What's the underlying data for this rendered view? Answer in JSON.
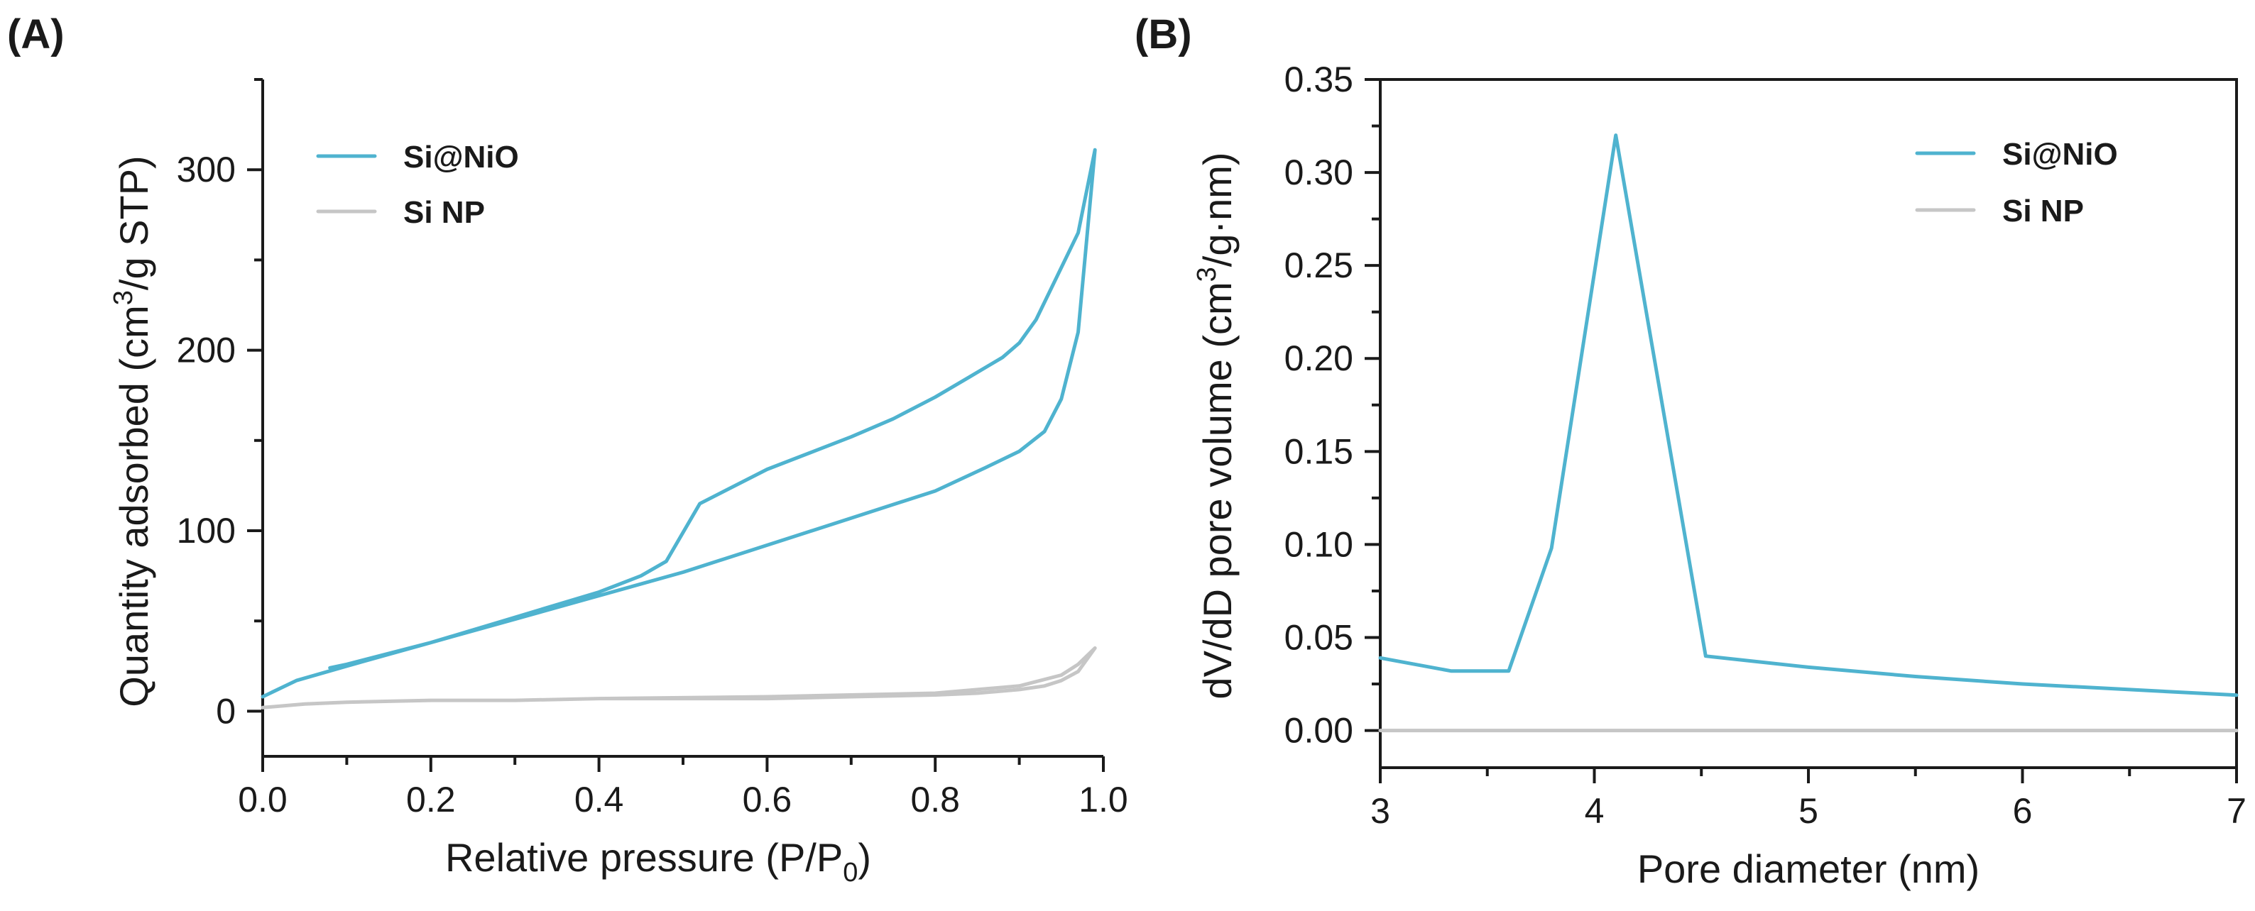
{
  "colors": {
    "si_nio": "#4fb3cf",
    "si_np": "#c6c6c6",
    "axis": "#1a1a1a"
  },
  "chart_data": [
    {
      "panel_label": "(A)",
      "type": "line",
      "xlabel": "Relative pressure (P/P",
      "xlabel_sub": "0",
      "xlabel_end": ")",
      "ylabel": "Quantity adsorbed (cm",
      "ylabel_sup": "3",
      "ylabel_end": "/g STP)",
      "xlim": [
        0.0,
        1.0
      ],
      "ylim": [
        -25,
        350
      ],
      "xticks": [
        0.0,
        0.2,
        0.4,
        0.6,
        0.8,
        1.0
      ],
      "xtick_labels": [
        "0.0",
        "0.2",
        "0.4",
        "0.6",
        "0.8",
        "1.0"
      ],
      "yticks": [
        0,
        100,
        200,
        300
      ],
      "ytick_labels": [
        "0",
        "100",
        "200",
        "300"
      ],
      "legend": [
        "Si@NiO",
        "Si NP"
      ],
      "legend_position": "top-left",
      "series": [
        {
          "name": "Si@NiO",
          "color_key": "si_nio",
          "x": [
            0.0,
            0.04,
            0.1,
            0.2,
            0.3,
            0.4,
            0.5,
            0.6,
            0.7,
            0.8,
            0.86,
            0.9,
            0.93,
            0.95,
            0.97,
            0.99,
            0.97,
            0.945,
            0.92,
            0.9,
            0.88,
            0.84,
            0.8,
            0.75,
            0.7,
            0.6,
            0.52,
            0.48,
            0.45,
            0.4,
            0.3,
            0.2,
            0.1,
            0.08
          ],
          "y": [
            8,
            17,
            25,
            38,
            51,
            64,
            77,
            92,
            107,
            122,
            135,
            144,
            155,
            173,
            210,
            311,
            265,
            241,
            217,
            204,
            196,
            185,
            174,
            162,
            152,
            134,
            115,
            83,
            75,
            66,
            52,
            38,
            26,
            24
          ]
        },
        {
          "name": "Si NP",
          "color_key": "si_np",
          "x": [
            0.0,
            0.05,
            0.1,
            0.2,
            0.3,
            0.4,
            0.5,
            0.6,
            0.7,
            0.8,
            0.85,
            0.9,
            0.93,
            0.95,
            0.97,
            0.99,
            0.97,
            0.95,
            0.9,
            0.8,
            0.6,
            0.4
          ],
          "y": [
            2,
            4,
            5,
            6,
            6,
            7,
            7,
            7,
            8,
            9,
            10,
            12,
            14,
            17,
            22,
            35,
            26,
            20,
            14,
            10,
            8,
            7
          ]
        }
      ]
    },
    {
      "panel_label": "(B)",
      "type": "line",
      "xlabel": "Pore diameter (nm)",
      "ylabel": "dV/dD pore volume (cm",
      "ylabel_sup": "3",
      "ylabel_end": "/g·nm)",
      "xlim": [
        3,
        7
      ],
      "ylim": [
        -0.02,
        0.35
      ],
      "xticks": [
        3,
        4,
        5,
        6,
        7
      ],
      "xtick_labels": [
        "3",
        "4",
        "5",
        "6",
        "7"
      ],
      "yticks": [
        0.0,
        0.05,
        0.1,
        0.15,
        0.2,
        0.25,
        0.3,
        0.35
      ],
      "ytick_labels": [
        "0.00",
        "0.05",
        "0.10",
        "0.15",
        "0.20",
        "0.25",
        "0.30",
        "0.35"
      ],
      "legend": [
        "Si@NiO",
        "Si NP"
      ],
      "legend_position": "top-right",
      "series": [
        {
          "name": "Si@NiO",
          "color_key": "si_nio",
          "x": [
            3.0,
            3.33,
            3.6,
            3.8,
            4.1,
            4.52,
            5.0,
            5.5,
            6.0,
            6.5,
            7.0
          ],
          "y": [
            0.039,
            0.032,
            0.032,
            0.098,
            0.32,
            0.04,
            0.034,
            0.029,
            0.025,
            0.022,
            0.019
          ]
        },
        {
          "name": "Si NP",
          "color_key": "si_np",
          "x": [
            3.0,
            4.0,
            5.0,
            6.0,
            7.0
          ],
          "y": [
            0.0,
            0.0,
            0.0,
            0.0,
            0.0
          ]
        }
      ]
    }
  ]
}
